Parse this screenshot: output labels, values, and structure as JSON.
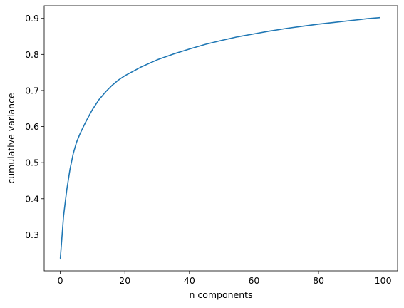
{
  "chart_data": {
    "type": "line",
    "xlabel": "n components",
    "ylabel": "cumulative variance",
    "xlim": [
      -5,
      104.5
    ],
    "ylim": [
      0.2,
      0.935
    ],
    "xticks": [
      0,
      20,
      40,
      60,
      80,
      100
    ],
    "yticks": [
      0.3,
      0.4,
      0.5,
      0.6,
      0.7,
      0.8,
      0.9
    ],
    "xtick_labels": [
      "0",
      "20",
      "40",
      "60",
      "80",
      "100"
    ],
    "ytick_labels": [
      "0.3",
      "0.4",
      "0.5",
      "0.6",
      "0.7",
      "0.8",
      "0.9"
    ],
    "grid": false,
    "line_color": "#1f77b4",
    "series": [
      {
        "x": [
          0,
          1,
          2,
          3,
          4,
          5,
          6,
          7,
          8,
          9,
          10,
          12,
          14,
          16,
          18,
          20,
          25,
          30,
          35,
          40,
          45,
          50,
          55,
          60,
          65,
          70,
          75,
          80,
          85,
          90,
          95,
          99
        ],
        "values": [
          0.235,
          0.352,
          0.425,
          0.482,
          0.525,
          0.556,
          0.578,
          0.597,
          0.615,
          0.632,
          0.648,
          0.675,
          0.696,
          0.714,
          0.729,
          0.741,
          0.765,
          0.785,
          0.801,
          0.815,
          0.828,
          0.839,
          0.849,
          0.857,
          0.865,
          0.872,
          0.878,
          0.884,
          0.889,
          0.894,
          0.899,
          0.902
        ]
      }
    ]
  }
}
